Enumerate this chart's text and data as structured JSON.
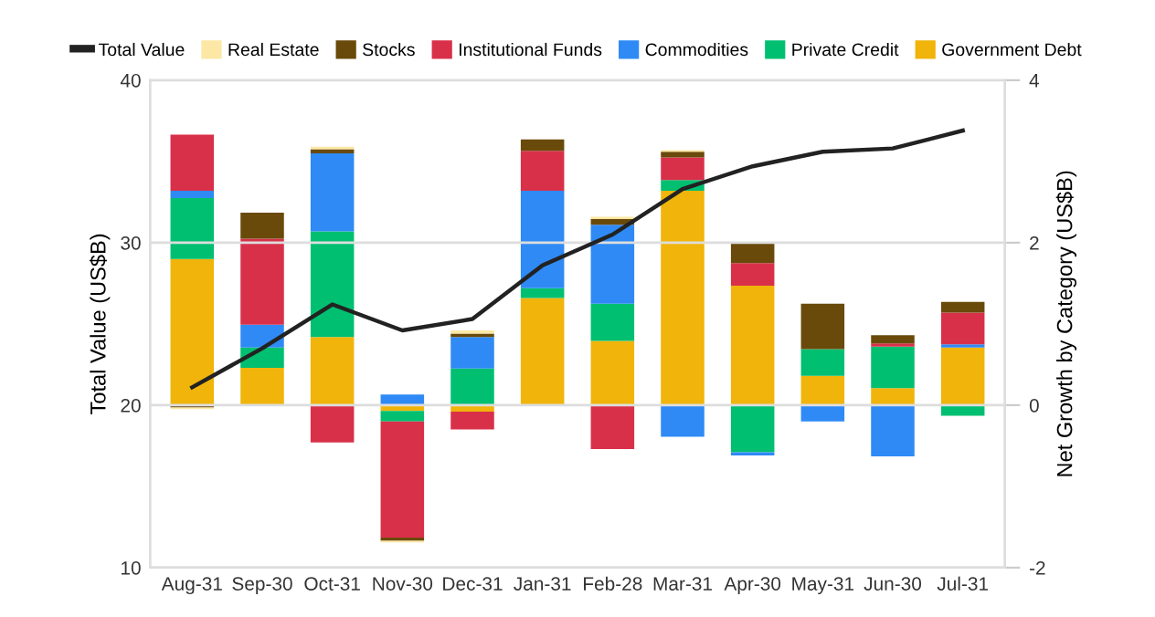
{
  "chart_data": {
    "type": "bar",
    "stacked": true,
    "xlabel": null,
    "ylabel": "Total Value (US$B)",
    "y2label": "Net Growth by Category (US$B)",
    "categories": [
      "Aug-31",
      "Sep-30",
      "Oct-31",
      "Nov-30",
      "Dec-31",
      "Jan-31",
      "Feb-28",
      "Mar-31",
      "Apr-30",
      "May-31",
      "Jun-30",
      "Jul-31"
    ],
    "series": [
      {
        "name": "Total Value",
        "type": "line",
        "axis": "y",
        "color": "#222222",
        "values": [
          21.1,
          23.5,
          26.2,
          24.6,
          25.3,
          28.6,
          30.5,
          33.3,
          34.7,
          35.6,
          35.8,
          36.9
        ]
      },
      {
        "name": "Government Debt",
        "axis": "y2",
        "color": "#f0b40a",
        "values": [
          1.8,
          0.46,
          0.84,
          -0.07,
          -0.08,
          1.32,
          0.79,
          2.64,
          1.47,
          0.36,
          0.21,
          0.71
        ]
      },
      {
        "name": "Private Credit",
        "axis": "y2",
        "color": "#00bf71",
        "values": [
          0.75,
          0.25,
          1.3,
          -0.13,
          0.45,
          0.12,
          0.46,
          0.13,
          -0.58,
          0.33,
          0.51,
          -0.13
        ]
      },
      {
        "name": "Commodities",
        "axis": "y2",
        "color": "#2f8af5",
        "values": [
          0.09,
          0.28,
          0.96,
          0.13,
          0.39,
          1.2,
          0.97,
          -0.39,
          -0.04,
          -0.2,
          -0.63,
          0.04
        ]
      },
      {
        "name": "Institutional Funds",
        "axis": "y2",
        "color": "#d9304a",
        "values": [
          0.69,
          1.06,
          -0.46,
          -1.43,
          -0.22,
          0.49,
          -0.54,
          0.28,
          0.28,
          0.0,
          0.04,
          0.39
        ]
      },
      {
        "name": "Stocks",
        "axis": "y2",
        "color": "#6a4a0a",
        "values": [
          -0.03,
          0.32,
          0.05,
          -0.04,
          0.04,
          0.14,
          0.07,
          0.07,
          0.24,
          0.56,
          0.1,
          0.13
        ]
      },
      {
        "name": "Real Estate",
        "axis": "y2",
        "color": "#fce8a4",
        "values": [
          -0.02,
          0.0,
          0.03,
          -0.02,
          0.04,
          0.0,
          0.03,
          0.02,
          0.0,
          0.0,
          0.0,
          0.0
        ]
      }
    ],
    "ylim": [
      10,
      40
    ],
    "yticks": [
      10,
      20,
      30,
      40
    ],
    "y2lim": [
      -2,
      4
    ],
    "y2ticks": [
      -2,
      0,
      2,
      4
    ],
    "grid": "y",
    "legend": "top",
    "marker": "none",
    "line_style": "solid"
  }
}
